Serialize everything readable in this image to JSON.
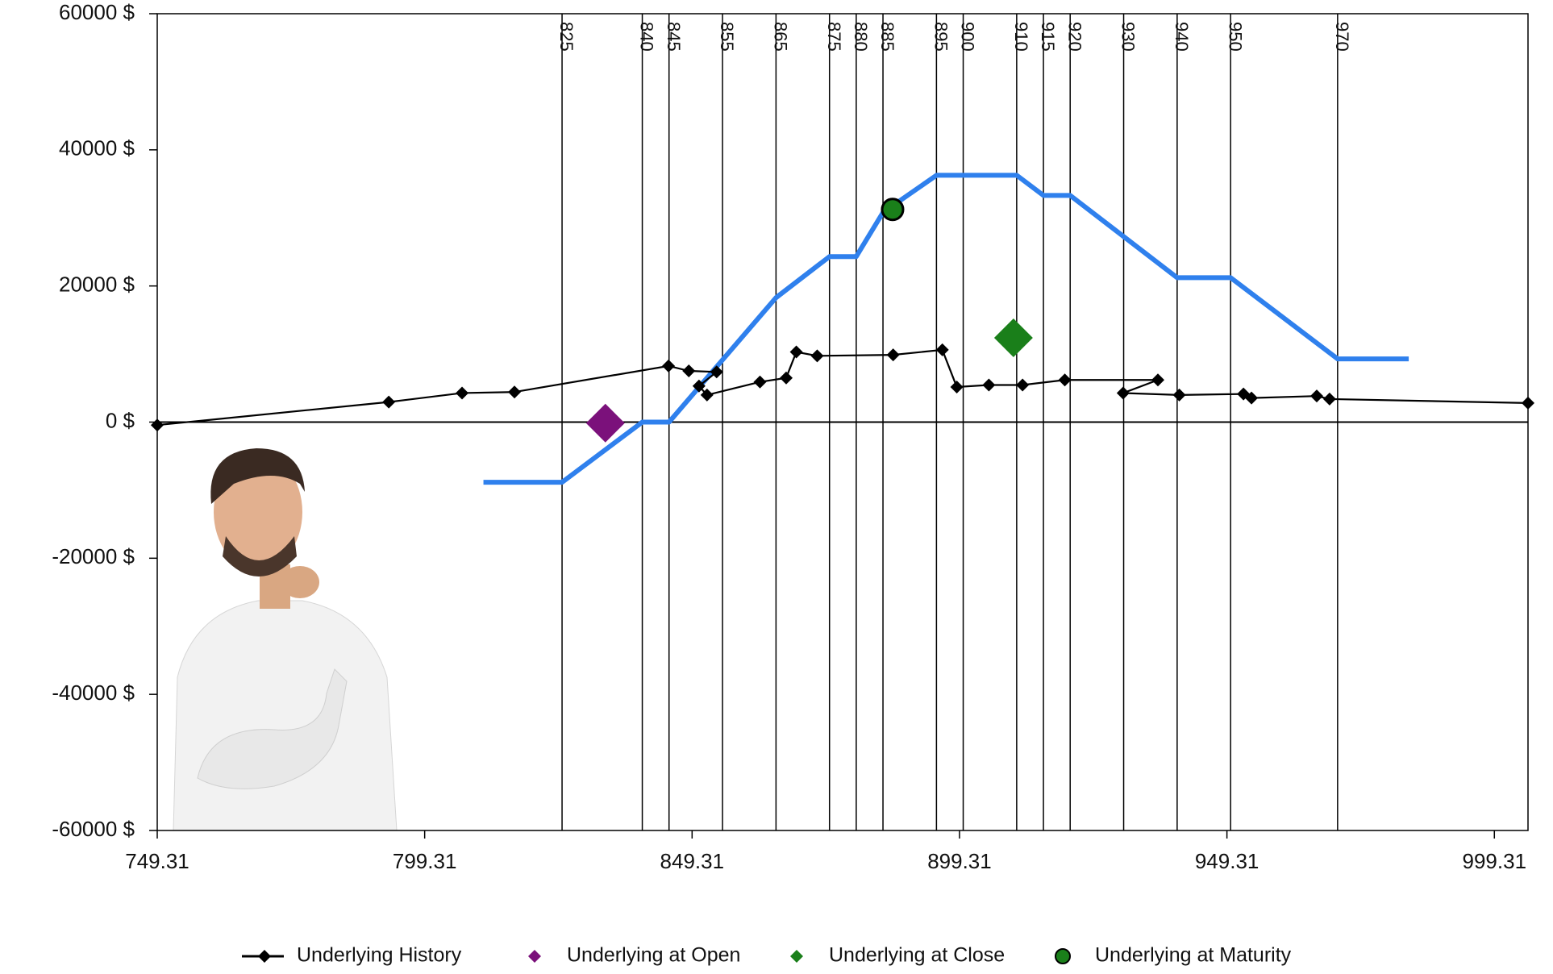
{
  "chart_data": {
    "type": "line",
    "xlim": [
      749.31,
      1005.6
    ],
    "ylim": [
      -60000,
      60000
    ],
    "xticks": [
      749.31,
      799.31,
      849.31,
      899.31,
      949.31,
      999.31
    ],
    "yticks": [
      {
        "value": 60000,
        "label": "60000 $"
      },
      {
        "value": 40000,
        "label": "40000 $"
      },
      {
        "value": 20000,
        "label": "20000 $"
      },
      {
        "value": 0,
        "label": "0 $"
      },
      {
        "value": -20000,
        "label": "-20000 $"
      },
      {
        "value": -40000,
        "label": "-40000 $"
      },
      {
        "value": -60000,
        "label": "-60000 $"
      }
    ],
    "strikes": [
      825,
      840,
      845,
      855,
      865,
      875,
      880,
      885,
      895,
      900,
      910,
      915,
      920,
      930,
      940,
      950,
      970
    ],
    "strike_color": "#000000",
    "payoff": {
      "color": "#2f80ed",
      "x": [
        810.3,
        825,
        840,
        845,
        865,
        875,
        880,
        885,
        895,
        910,
        915,
        920,
        940,
        950,
        970,
        983.3
      ],
      "values": [
        -8840,
        -8840,
        0,
        0,
        18280,
        24320,
        24320,
        30800,
        36260,
        36260,
        33300,
        33300,
        21220,
        21220,
        9290,
        9290
      ]
    },
    "series": [
      {
        "name": "Underlying History",
        "color": "#000000",
        "marker": "small-diamond",
        "x": [
          749.31,
          792.6,
          806.3,
          816.1,
          844.9,
          848.7,
          853.9,
          850.6,
          852.1,
          862.0,
          866.9,
          868.8,
          872.7,
          886.9,
          896.1,
          898.8,
          904.8,
          911.1,
          919.0,
          936.4,
          929.9,
          940.4,
          952.4,
          953.9,
          966.1,
          968.5,
          1005.6
        ],
        "values": [
          -440,
          2950,
          4270,
          4420,
          8250,
          7520,
          7370,
          5300,
          3980,
          5900,
          6490,
          10300,
          9730,
          9880,
          10610,
          5160,
          5450,
          5450,
          6190,
          6190,
          4270,
          3980,
          4130,
          3540,
          3830,
          3390,
          2800
        ]
      },
      {
        "name": "Underlying at Open",
        "color": "#7b117b",
        "marker": "diamond",
        "x": [
          833.1
        ],
        "values": [
          -150
        ]
      },
      {
        "name": "Underlying at Close",
        "color": "#1a7f1a",
        "marker": "diamond",
        "x": [
          909.4
        ],
        "values": [
          12380
        ]
      },
      {
        "name": "Underlying at Maturity",
        "color": "#1a7f1a",
        "marker": "circle",
        "x": [
          886.8
        ],
        "values": [
          31240
        ]
      }
    ]
  }
}
